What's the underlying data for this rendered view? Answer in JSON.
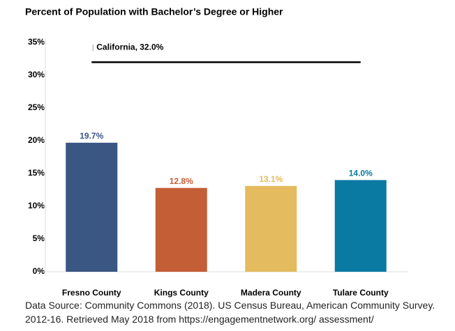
{
  "chart_data": {
    "type": "bar",
    "title": "Percent of Population with Bachelor’s Degree or Higher",
    "categories": [
      "Fresno County",
      "Kings County",
      "Madera County",
      "Tulare County"
    ],
    "values": [
      19.7,
      12.8,
      13.1,
      14.0
    ],
    "value_labels": [
      "19.7%",
      "12.8%",
      "13.1%",
      "14.0%"
    ],
    "colors": [
      "#3a5683",
      "#c45e36",
      "#e4bb5e",
      "#0a7aa3"
    ],
    "ylim": [
      0,
      35
    ],
    "yticks": [
      {
        "value": 0,
        "label": "0%"
      },
      {
        "value": 5,
        "label": "5%"
      },
      {
        "value": 10,
        "label": "10%"
      },
      {
        "value": 15,
        "label": "15%"
      },
      {
        "value": 20,
        "label": "20%"
      },
      {
        "value": 25,
        "label": "25%"
      },
      {
        "value": 30,
        "label": "30%"
      },
      {
        "value": 35,
        "label": "35%"
      }
    ],
    "reference": {
      "value": 32,
      "label": "California, 32.0%",
      "color": "#000000"
    },
    "source": "Data Source: Community Commons (2018). US Census Bureau, American Community Survey. 2012-16. Retrieved May 2018 from https://engagementnetwork.org/ assessment/"
  }
}
